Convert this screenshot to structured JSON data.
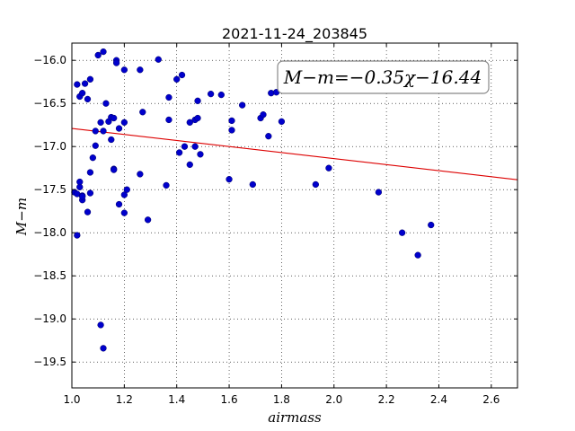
{
  "chart_data": {
    "type": "scatter",
    "title": "2021-11-24_203845",
    "xlabel": "airmass",
    "ylabel": "M−m",
    "xlim": [
      1.0,
      2.7
    ],
    "ylim": [
      -19.8,
      -15.8
    ],
    "y_inverted": true,
    "grid": true,
    "x_ticks": [
      1.0,
      1.2,
      1.4,
      1.6,
      1.8,
      2.0,
      2.2,
      2.4,
      2.6
    ],
    "x_tick_labels": [
      "1.0",
      "1.2",
      "1.4",
      "1.6",
      "1.8",
      "2.0",
      "2.2",
      "2.4",
      "2.6"
    ],
    "y_ticks": [
      -16.0,
      -16.5,
      -17.0,
      -17.5,
      -18.0,
      -18.5,
      -19.0,
      -19.5
    ],
    "y_tick_labels": [
      "−16.0",
      "−16.5",
      "−17.0",
      "−17.5",
      "−18.0",
      "−18.5",
      "−19.0",
      "−19.5"
    ],
    "point_color": "#0000cc",
    "fit_color": "#dd0000",
    "annotation": "M−m=−0.35χ−16.44",
    "fit": {
      "slope": -0.35,
      "intercept": -16.44
    },
    "points": [
      [
        1.01,
        -17.53
      ],
      [
        1.02,
        -17.55
      ],
      [
        1.02,
        -18.03
      ],
      [
        1.02,
        -16.28
      ],
      [
        1.03,
        -16.42
      ],
      [
        1.03,
        -17.47
      ],
      [
        1.03,
        -17.41
      ],
      [
        1.04,
        -16.38
      ],
      [
        1.04,
        -17.57
      ],
      [
        1.04,
        -17.62
      ],
      [
        1.04,
        -17.58
      ],
      [
        1.05,
        -16.27
      ],
      [
        1.06,
        -16.45
      ],
      [
        1.06,
        -17.76
      ],
      [
        1.07,
        -16.22
      ],
      [
        1.07,
        -17.3
      ],
      [
        1.07,
        -17.54
      ],
      [
        1.08,
        -17.13
      ],
      [
        1.09,
        -16.82
      ],
      [
        1.09,
        -16.99
      ],
      [
        1.1,
        -15.94
      ],
      [
        1.11,
        -16.72
      ],
      [
        1.11,
        -19.07
      ],
      [
        1.12,
        -16.82
      ],
      [
        1.12,
        -15.9
      ],
      [
        1.12,
        -19.34
      ],
      [
        1.13,
        -16.5
      ],
      [
        1.14,
        -16.71
      ],
      [
        1.15,
        -16.66
      ],
      [
        1.15,
        -16.92
      ],
      [
        1.16,
        -17.26
      ],
      [
        1.16,
        -16.67
      ],
      [
        1.16,
        -17.27
      ],
      [
        1.17,
        -16.0
      ],
      [
        1.17,
        -16.03
      ],
      [
        1.18,
        -17.67
      ],
      [
        1.18,
        -16.79
      ],
      [
        1.2,
        -16.11
      ],
      [
        1.2,
        -16.72
      ],
      [
        1.2,
        -17.77
      ],
      [
        1.2,
        -17.56
      ],
      [
        1.21,
        -17.5
      ],
      [
        1.26,
        -16.11
      ],
      [
        1.26,
        -17.32
      ],
      [
        1.27,
        -16.6
      ],
      [
        1.29,
        -17.85
      ],
      [
        1.33,
        -15.99
      ],
      [
        1.36,
        -17.45
      ],
      [
        1.37,
        -16.43
      ],
      [
        1.37,
        -16.69
      ],
      [
        1.4,
        -16.22
      ],
      [
        1.41,
        -17.07
      ],
      [
        1.42,
        -16.17
      ],
      [
        1.43,
        -17.0
      ],
      [
        1.45,
        -17.21
      ],
      [
        1.45,
        -16.72
      ],
      [
        1.47,
        -16.69
      ],
      [
        1.47,
        -17.0
      ],
      [
        1.48,
        -16.67
      ],
      [
        1.48,
        -16.47
      ],
      [
        1.49,
        -17.09
      ],
      [
        1.53,
        -16.39
      ],
      [
        1.57,
        -16.4
      ],
      [
        1.6,
        -17.38
      ],
      [
        1.61,
        -16.7
      ],
      [
        1.61,
        -16.81
      ],
      [
        1.65,
        -16.52
      ],
      [
        1.69,
        -17.44
      ],
      [
        1.72,
        -16.67
      ],
      [
        1.73,
        -16.63
      ],
      [
        1.75,
        -16.88
      ],
      [
        1.76,
        -16.38
      ],
      [
        1.78,
        -16.37
      ],
      [
        1.8,
        -16.71
      ],
      [
        1.93,
        -17.44
      ],
      [
        1.98,
        -17.25
      ],
      [
        2.17,
        -17.53
      ],
      [
        2.26,
        -18.0
      ],
      [
        2.32,
        -18.26
      ],
      [
        2.37,
        -17.91
      ]
    ]
  }
}
